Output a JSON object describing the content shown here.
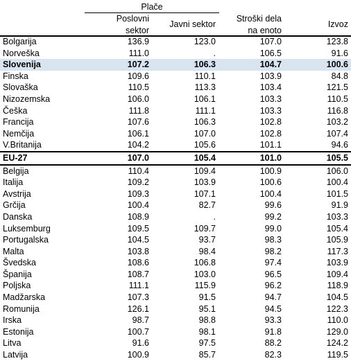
{
  "header": {
    "group_label": "Plače",
    "col1": [
      "Poslovni",
      "sektor"
    ],
    "col2": "Javni sektor",
    "col3": [
      "Stroški dela",
      "na enoto"
    ],
    "col4": "Izvoz"
  },
  "rows": [
    {
      "name": "Bolgarija",
      "values": [
        "136.9",
        "123.0",
        "107.0",
        "123.8"
      ]
    },
    {
      "name": "Norveška",
      "values": [
        "111.0",
        ".",
        "106.5",
        "91.6"
      ]
    },
    {
      "name": "Slovenija",
      "values": [
        "107.2",
        "106.3",
        "104.7",
        "100.6"
      ],
      "style": "highlight"
    },
    {
      "name": "Finska",
      "values": [
        "109.6",
        "110.1",
        "103.9",
        "84.8"
      ]
    },
    {
      "name": "Slovaška",
      "values": [
        "110.5",
        "113.3",
        "103.4",
        "121.5"
      ]
    },
    {
      "name": "Nizozemska",
      "values": [
        "106.0",
        "106.1",
        "103.3",
        "110.5"
      ]
    },
    {
      "name": "Češka",
      "values": [
        "111.8",
        "111.1",
        "103.3",
        "116.8"
      ]
    },
    {
      "name": "Francija",
      "values": [
        "107.6",
        "106.3",
        "102.8",
        "103.2"
      ]
    },
    {
      "name": "Nemčija",
      "values": [
        "106.1",
        "107.0",
        "102.8",
        "107.4"
      ]
    },
    {
      "name": "V.Britanija",
      "values": [
        "104.2",
        "105.6",
        "101.1",
        "94.6"
      ]
    },
    {
      "name": "EU-27",
      "values": [
        "107.0",
        "105.4",
        "101.0",
        "105.5"
      ],
      "style": "total"
    },
    {
      "name": "Belgija",
      "values": [
        "110.4",
        "109.4",
        "100.9",
        "106.0"
      ]
    },
    {
      "name": "Italija",
      "values": [
        "109.2",
        "103.9",
        "100.6",
        "100.4"
      ]
    },
    {
      "name": "Avstrija",
      "values": [
        "109.3",
        "107.1",
        "100.4",
        "101.5"
      ]
    },
    {
      "name": "Grčija",
      "values": [
        "100.4",
        "82.7",
        "99.6",
        "91.9"
      ]
    },
    {
      "name": "Danska",
      "values": [
        "108.9",
        ".",
        "99.2",
        "103.3"
      ]
    },
    {
      "name": "Luksemburg",
      "values": [
        "109.5",
        "109.7",
        "99.0",
        "105.4"
      ]
    },
    {
      "name": "Portugalska",
      "values": [
        "104.5",
        "93.7",
        "98.3",
        "105.9"
      ]
    },
    {
      "name": "Malta",
      "values": [
        "103.8",
        "98.4",
        "98.2",
        "117.3"
      ]
    },
    {
      "name": "Švedska",
      "values": [
        "108.6",
        "106.8",
        "97.4",
        "103.9"
      ]
    },
    {
      "name": "Španija",
      "values": [
        "108.7",
        "103.0",
        "96.5",
        "109.4"
      ]
    },
    {
      "name": "Poljska",
      "values": [
        "111.1",
        "115.9",
        "96.2",
        "118.9"
      ]
    },
    {
      "name": "Madžarska",
      "values": [
        "107.3",
        "91.5",
        "94.7",
        "104.5"
      ]
    },
    {
      "name": "Romunija",
      "values": [
        "126.1",
        "95.1",
        "94.5",
        "122.3"
      ]
    },
    {
      "name": "Irska",
      "values": [
        "98.7",
        "98.8",
        "93.3",
        "110.0"
      ]
    },
    {
      "name": "Estonija",
      "values": [
        "100.7",
        "98.1",
        "91.8",
        "129.0"
      ]
    },
    {
      "name": "Litva",
      "values": [
        "91.6",
        "97.5",
        "88.2",
        "124.2"
      ]
    },
    {
      "name": "Latvija",
      "values": [
        "100.9",
        "85.7",
        "82.3",
        "119.5"
      ]
    }
  ],
  "colors": {
    "highlight": "#d9e4f1"
  }
}
